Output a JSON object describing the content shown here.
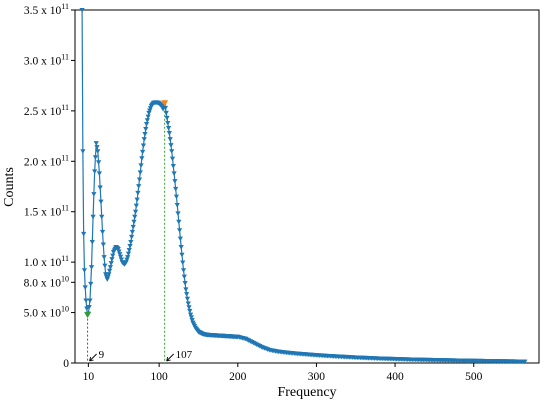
{
  "chart_data": {
    "type": "line",
    "xlabel": "Frequency",
    "ylabel": "Counts",
    "xlim": [
      -7,
      583
    ],
    "ylim": [
      0,
      350000000000
    ],
    "x_ticks": [
      {
        "value": 10,
        "label": "10"
      },
      {
        "value": 100,
        "label": "100"
      },
      {
        "value": 200,
        "label": "200"
      },
      {
        "value": 300,
        "label": "300"
      },
      {
        "value": 400,
        "label": "400"
      },
      {
        "value": 500,
        "label": "500"
      }
    ],
    "y_ticks": [
      {
        "value": 0,
        "label": "0"
      },
      {
        "value": 50000000000,
        "label": "5.0 x 10",
        "exp": "10"
      },
      {
        "value": 80000000000,
        "label": "8.0 x 10",
        "exp": "10"
      },
      {
        "value": 100000000000,
        "label": "1.0 x 10",
        "exp": "11"
      },
      {
        "value": 150000000000,
        "label": "1.5 x 10",
        "exp": "11"
      },
      {
        "value": 200000000000,
        "label": "2.0 x 10",
        "exp": "11"
      },
      {
        "value": 250000000000,
        "label": "2.5 x 10",
        "exp": "11"
      },
      {
        "value": 300000000000,
        "label": "3.0 x 10",
        "exp": "11"
      },
      {
        "value": 350000000000,
        "label": "3.5 x 10",
        "exp": "11"
      }
    ],
    "series": [
      {
        "color": "#1f77b4",
        "marker": "triangle-down",
        "x": [
          2,
          3,
          4,
          5,
          6,
          7,
          8,
          9,
          10,
          12,
          14,
          16,
          18,
          20,
          22,
          24,
          26,
          28,
          30,
          32,
          34,
          36,
          38,
          40,
          42,
          45,
          48,
          50,
          53,
          56,
          58,
          60,
          62,
          64,
          66,
          68,
          70,
          72,
          75,
          78,
          81,
          84,
          87,
          90,
          93,
          96,
          99,
          102,
          105,
          107,
          110,
          113,
          116,
          119,
          122,
          125,
          128,
          131,
          134,
          137,
          140,
          143,
          146,
          150,
          155,
          160,
          170,
          180,
          190,
          200,
          210,
          220,
          230,
          240,
          250,
          260,
          280,
          300,
          320,
          350,
          380,
          420,
          460,
          500,
          540,
          565
        ],
        "y": [
          350000000000,
          210000000000,
          128000000000,
          92000000000,
          75000000000,
          62000000000,
          54000000000,
          48000000000,
          49000000000,
          62000000000,
          95000000000,
          145000000000,
          190000000000,
          218000000000,
          210000000000,
          188000000000,
          160000000000,
          130000000000,
          105000000000,
          88000000000,
          83000000000,
          88000000000,
          95000000000,
          103000000000,
          110000000000,
          115000000000,
          113000000000,
          108000000000,
          100000000000,
          98000000000,
          100000000000,
          105000000000,
          112000000000,
          120000000000,
          130000000000,
          140000000000,
          150000000000,
          162000000000,
          182000000000,
          203000000000,
          222000000000,
          237000000000,
          248000000000,
          255000000000,
          258000000000,
          258500000000,
          258000000000,
          256000000000,
          252000000000,
          258000000000,
          243000000000,
          228000000000,
          210000000000,
          188000000000,
          165000000000,
          140000000000,
          115000000000,
          92000000000,
          73000000000,
          59000000000,
          48000000000,
          40000000000,
          35000000000,
          31000000000,
          29000000000,
          28000000000,
          27500000000,
          27000000000,
          26500000000,
          26000000000,
          24000000000,
          20000000000,
          16000000000,
          13000000000,
          11500000000,
          10500000000,
          9000000000,
          7800000000,
          6800000000,
          5500000000,
          4500000000,
          3500000000,
          2800000000,
          2200000000,
          1700000000,
          1400000000
        ]
      }
    ],
    "minimum_marker": {
      "x": 9,
      "y": 48000000000,
      "label": "9",
      "color": "#2ca02c"
    },
    "peak_marker": {
      "x": 107,
      "y": 258000000000,
      "label": "107",
      "color": "#ff7f0e"
    },
    "grid": false
  }
}
